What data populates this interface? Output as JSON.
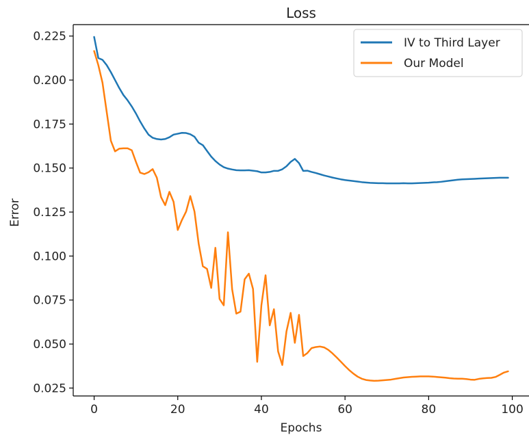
{
  "chart_data": {
    "type": "line",
    "title": "Loss",
    "xlabel": "Epochs",
    "ylabel": "Error",
    "xlim": [
      -5,
      104
    ],
    "ylim": [
      0.0205,
      0.2315
    ],
    "xticks": [
      0,
      20,
      40,
      60,
      80,
      100
    ],
    "xtick_labels": [
      "0",
      "20",
      "40",
      "60",
      "80",
      "100"
    ],
    "yticks": [
      0.025,
      0.05,
      0.075,
      0.1,
      0.125,
      0.15,
      0.175,
      0.2,
      0.225
    ],
    "ytick_labels": [
      "0.025",
      "0.050",
      "0.075",
      "0.100",
      "0.125",
      "0.150",
      "0.175",
      "0.200",
      "0.225"
    ],
    "grid": false,
    "legend_position": "upper right",
    "series": [
      {
        "name": "IV to Third Layer",
        "color": "#1f77b4",
        "points": [
          [
            0,
            0.2245
          ],
          [
            1,
            0.2125
          ],
          [
            2,
            0.2115
          ],
          [
            3,
            0.2085
          ],
          [
            4,
            0.2045
          ],
          [
            5,
            0.2
          ],
          [
            6,
            0.1955
          ],
          [
            7,
            0.1915
          ],
          [
            8,
            0.1885
          ],
          [
            9,
            0.185
          ],
          [
            10,
            0.181
          ],
          [
            11,
            0.1765
          ],
          [
            12,
            0.1725
          ],
          [
            13,
            0.169
          ],
          [
            14,
            0.1672
          ],
          [
            15,
            0.1665
          ],
          [
            16,
            0.1662
          ],
          [
            17,
            0.1665
          ],
          [
            18,
            0.1675
          ],
          [
            19,
            0.169
          ],
          [
            20,
            0.1695
          ],
          [
            21,
            0.17
          ],
          [
            22,
            0.1699
          ],
          [
            23,
            0.1692
          ],
          [
            24,
            0.1678
          ],
          [
            25,
            0.1644
          ],
          [
            26,
            0.163
          ],
          [
            27,
            0.1597
          ],
          [
            28,
            0.1565
          ],
          [
            29,
            0.154
          ],
          [
            30,
            0.152
          ],
          [
            31,
            0.1505
          ],
          [
            32,
            0.1497
          ],
          [
            33,
            0.1492
          ],
          [
            34,
            0.1488
          ],
          [
            35,
            0.1487
          ],
          [
            36,
            0.1487
          ],
          [
            37,
            0.1488
          ],
          [
            38,
            0.1485
          ],
          [
            39,
            0.1482
          ],
          [
            40,
            0.1475
          ],
          [
            41,
            0.1475
          ],
          [
            42,
            0.1478
          ],
          [
            43,
            0.1484
          ],
          [
            44,
            0.1484
          ],
          [
            45,
            0.1493
          ],
          [
            46,
            0.151
          ],
          [
            47,
            0.1535
          ],
          [
            48,
            0.1552
          ],
          [
            49,
            0.1528
          ],
          [
            50,
            0.1484
          ],
          [
            51,
            0.1485
          ],
          [
            52,
            0.1478
          ],
          [
            53,
            0.1472
          ],
          [
            54,
            0.1465
          ],
          [
            55,
            0.1458
          ],
          [
            56,
            0.1452
          ],
          [
            57,
            0.1446
          ],
          [
            58,
            0.1441
          ],
          [
            59,
            0.1436
          ],
          [
            60,
            0.1432
          ],
          [
            61,
            0.1429
          ],
          [
            62,
            0.1426
          ],
          [
            63,
            0.1423
          ],
          [
            64,
            0.142
          ],
          [
            65,
            0.1418
          ],
          [
            66,
            0.1416
          ],
          [
            67,
            0.1415
          ],
          [
            68,
            0.1414
          ],
          [
            69,
            0.1414
          ],
          [
            70,
            0.1413
          ],
          [
            71,
            0.1413
          ],
          [
            72,
            0.1413
          ],
          [
            73,
            0.1413
          ],
          [
            74,
            0.1414
          ],
          [
            75,
            0.1413
          ],
          [
            76,
            0.1413
          ],
          [
            77,
            0.1414
          ],
          [
            78,
            0.1415
          ],
          [
            79,
            0.1416
          ],
          [
            80,
            0.1417
          ],
          [
            81,
            0.1419
          ],
          [
            82,
            0.142
          ],
          [
            83,
            0.1422
          ],
          [
            84,
            0.1425
          ],
          [
            85,
            0.1428
          ],
          [
            86,
            0.1431
          ],
          [
            87,
            0.1434
          ],
          [
            88,
            0.1436
          ],
          [
            89,
            0.1437
          ],
          [
            90,
            0.1438
          ],
          [
            91,
            0.1439
          ],
          [
            92,
            0.144
          ],
          [
            93,
            0.1441
          ],
          [
            94,
            0.1442
          ],
          [
            95,
            0.1443
          ],
          [
            96,
            0.1444
          ],
          [
            97,
            0.1445
          ],
          [
            98,
            0.1445
          ],
          [
            99,
            0.1445
          ]
        ]
      },
      {
        "name": "Our Model",
        "color": "#ff7f0e",
        "points": [
          [
            0,
            0.2165
          ],
          [
            1,
            0.2085
          ],
          [
            2,
            0.1985
          ],
          [
            3,
            0.182
          ],
          [
            4,
            0.1655
          ],
          [
            5,
            0.1595
          ],
          [
            6,
            0.161
          ],
          [
            7,
            0.1612
          ],
          [
            8,
            0.1612
          ],
          [
            9,
            0.1601
          ],
          [
            10,
            0.1535
          ],
          [
            11,
            0.1474
          ],
          [
            12,
            0.1466
          ],
          [
            13,
            0.1476
          ],
          [
            14,
            0.1494
          ],
          [
            15,
            0.1445
          ],
          [
            16,
            0.1335
          ],
          [
            17,
            0.1289
          ],
          [
            18,
            0.1365
          ],
          [
            19,
            0.1308
          ],
          [
            20,
            0.1148
          ],
          [
            21,
            0.1205
          ],
          [
            22,
            0.1253
          ],
          [
            23,
            0.1341
          ],
          [
            24,
            0.1253
          ],
          [
            25,
            0.107
          ],
          [
            26,
            0.0942
          ],
          [
            27,
            0.0927
          ],
          [
            28,
            0.0819
          ],
          [
            29,
            0.1047
          ],
          [
            30,
            0.0756
          ],
          [
            31,
            0.072
          ],
          [
            32,
            0.1135
          ],
          [
            33,
            0.0812
          ],
          [
            34,
            0.0673
          ],
          [
            35,
            0.0684
          ],
          [
            36,
            0.0868
          ],
          [
            37,
            0.09
          ],
          [
            38,
            0.0813
          ],
          [
            39,
            0.0399
          ],
          [
            40,
            0.072
          ],
          [
            41,
            0.0891
          ],
          [
            42,
            0.0606
          ],
          [
            43,
            0.0698
          ],
          [
            44,
            0.0458
          ],
          [
            45,
            0.0381
          ],
          [
            46,
            0.0572
          ],
          [
            47,
            0.0677
          ],
          [
            48,
            0.0507
          ],
          [
            49,
            0.0666
          ],
          [
            50,
            0.0432
          ],
          [
            51,
            0.0449
          ],
          [
            52,
            0.0477
          ],
          [
            53,
            0.0483
          ],
          [
            54,
            0.0486
          ],
          [
            55,
            0.0481
          ],
          [
            56,
            0.0467
          ],
          [
            57,
            0.0447
          ],
          [
            58,
            0.0424
          ],
          [
            59,
            0.04
          ],
          [
            60,
            0.0375
          ],
          [
            61,
            0.0352
          ],
          [
            62,
            0.0332
          ],
          [
            63,
            0.0315
          ],
          [
            64,
            0.0303
          ],
          [
            65,
            0.0296
          ],
          [
            66,
            0.0293
          ],
          [
            67,
            0.0291
          ],
          [
            68,
            0.0292
          ],
          [
            69,
            0.0294
          ],
          [
            70,
            0.0296
          ],
          [
            71,
            0.0298
          ],
          [
            72,
            0.0302
          ],
          [
            73,
            0.0306
          ],
          [
            74,
            0.031
          ],
          [
            75,
            0.0312
          ],
          [
            76,
            0.0314
          ],
          [
            77,
            0.0315
          ],
          [
            78,
            0.0316
          ],
          [
            79,
            0.0316
          ],
          [
            80,
            0.0316
          ],
          [
            81,
            0.0315
          ],
          [
            82,
            0.0313
          ],
          [
            83,
            0.0311
          ],
          [
            84,
            0.0309
          ],
          [
            85,
            0.0306
          ],
          [
            86,
            0.0304
          ],
          [
            87,
            0.0303
          ],
          [
            88,
            0.0303
          ],
          [
            89,
            0.0301
          ],
          [
            90,
            0.0298
          ],
          [
            91,
            0.0297
          ],
          [
            92,
            0.0302
          ],
          [
            93,
            0.0305
          ],
          [
            94,
            0.0307
          ],
          [
            95,
            0.0308
          ],
          [
            96,
            0.0313
          ],
          [
            97,
            0.0325
          ],
          [
            98,
            0.0338
          ],
          [
            99,
            0.0345
          ]
        ]
      }
    ]
  }
}
